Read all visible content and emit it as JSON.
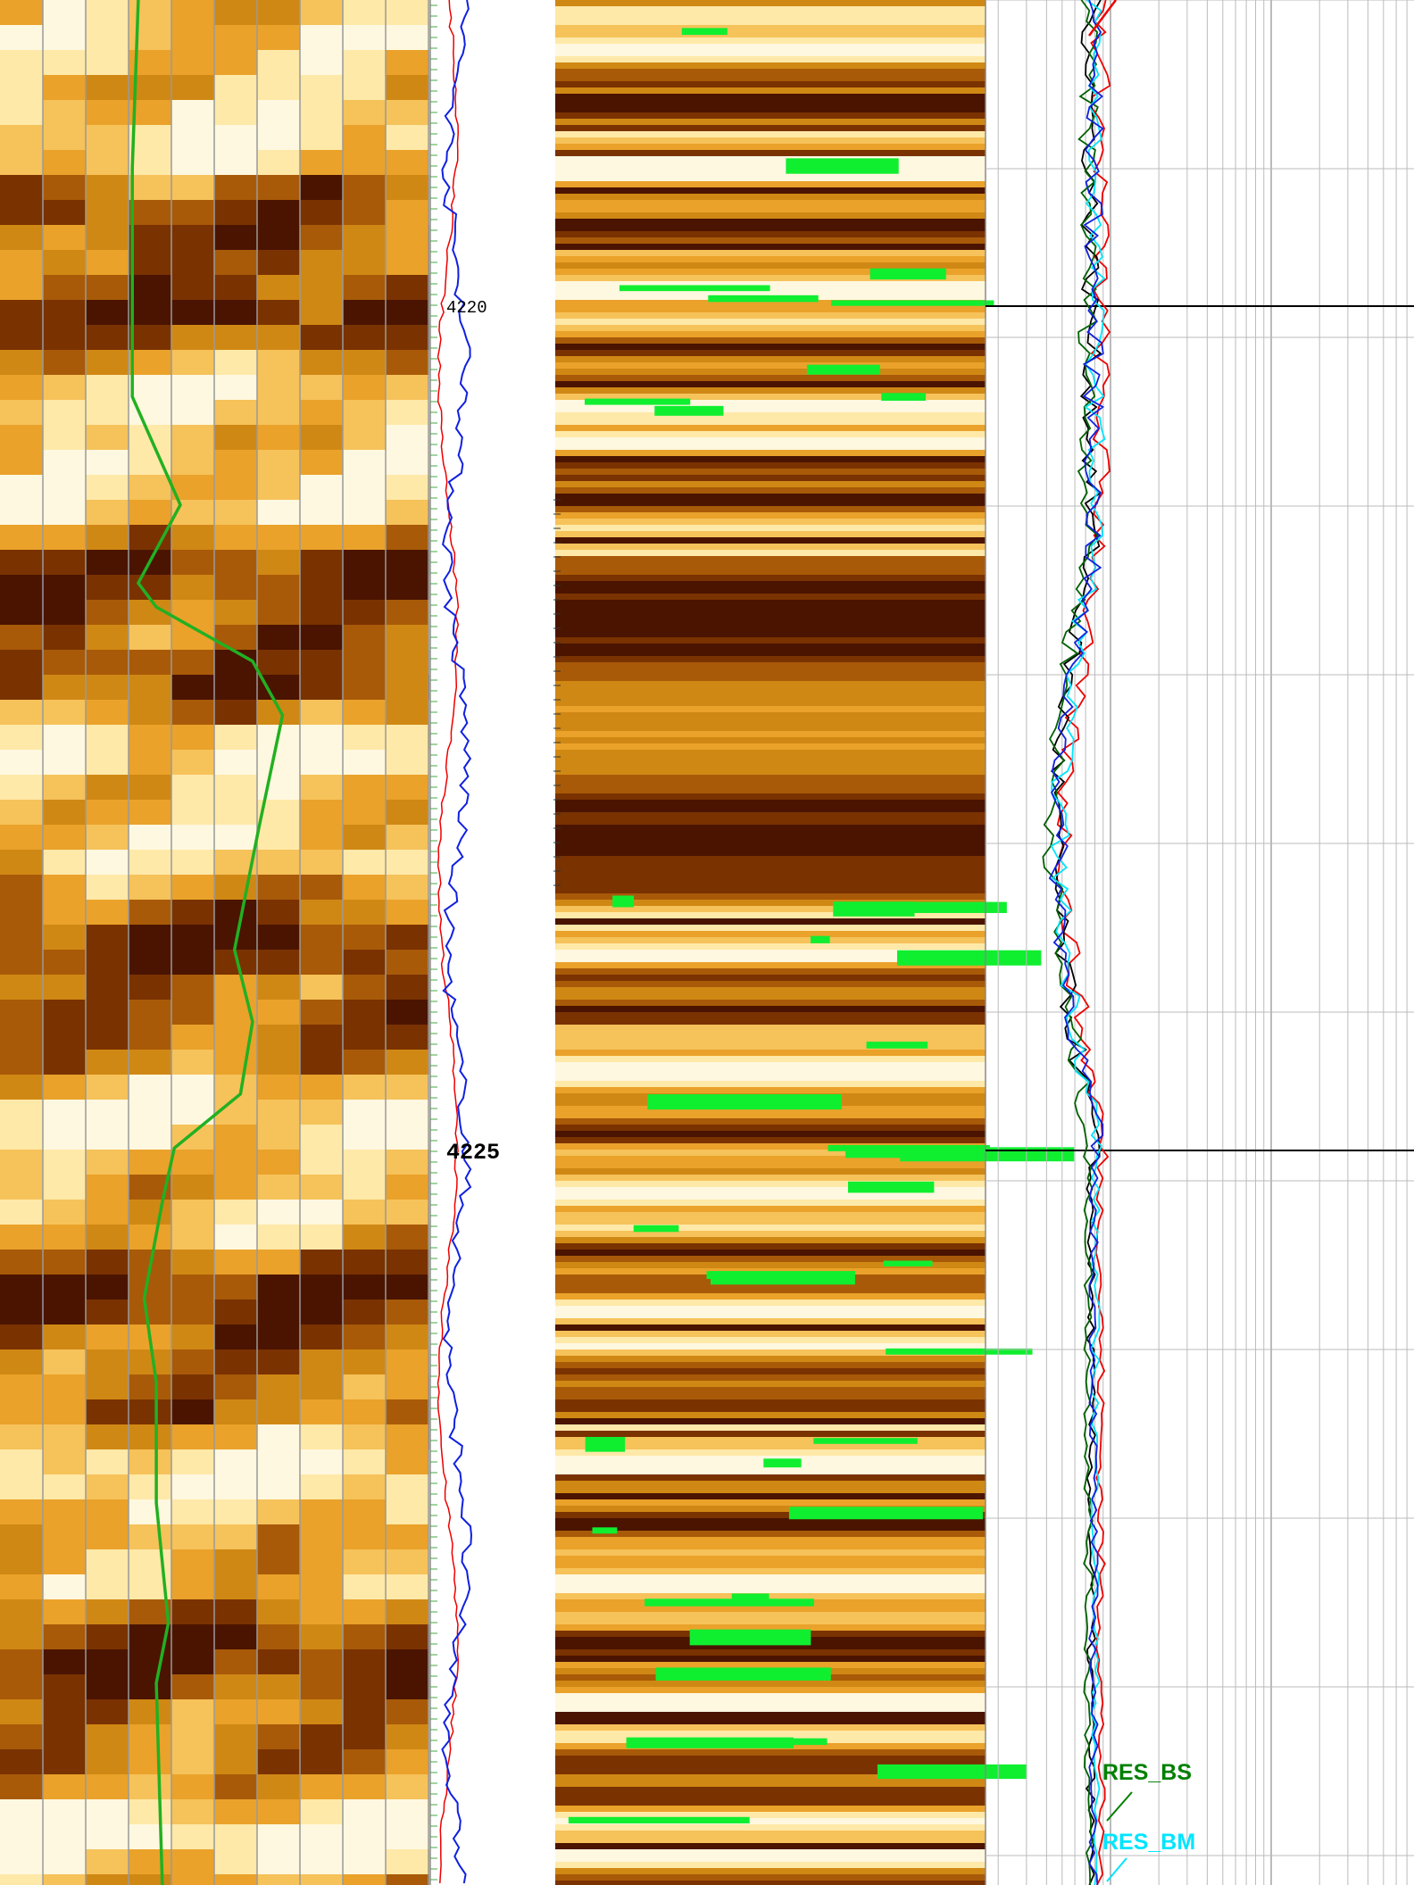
{
  "depth_track": {
    "labels": [
      "4220",
      "4225"
    ]
  },
  "curve_labels": [
    "RES_BS",
    "RES_BM"
  ]
}
